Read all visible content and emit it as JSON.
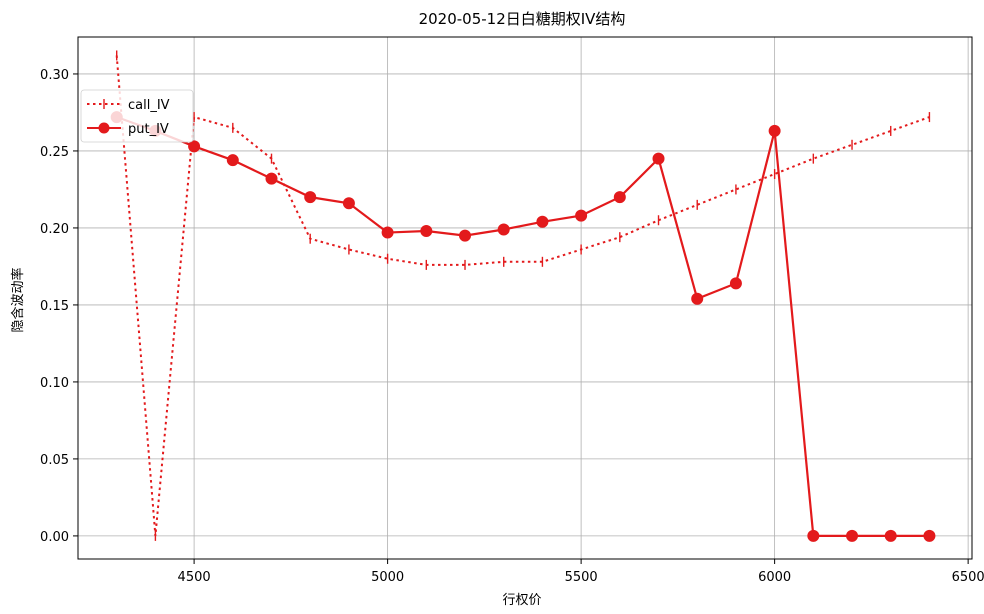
{
  "chart_data": {
    "type": "line",
    "title": "2020-05-12日白糖期权IV结构",
    "xlabel": "行权价",
    "ylabel": "隐含波动率",
    "xlim": [
      4200,
      6510
    ],
    "ylim": [
      -0.015,
      0.324
    ],
    "xticks": [
      4500,
      5000,
      5500,
      6000,
      6500
    ],
    "yticks": [
      0.0,
      0.05,
      0.1,
      0.15,
      0.2,
      0.25,
      0.3
    ],
    "xtick_labels": [
      "4500",
      "5000",
      "5500",
      "6000",
      "6500"
    ],
    "ytick_labels": [
      "0.00",
      "0.05",
      "0.10",
      "0.15",
      "0.20",
      "0.25",
      "0.30"
    ],
    "grid": true,
    "legend_position": "upper-left",
    "series": [
      {
        "name": "call_IV",
        "style": "dotted",
        "marker": "vline",
        "color": "#e31a1c",
        "x": [
          4300,
          4400,
          4500,
          4600,
          4700,
          4800,
          4900,
          5000,
          5100,
          5200,
          5300,
          5400,
          5500,
          5600,
          5700,
          5800,
          5900,
          6000,
          6100,
          6200,
          6300,
          6400
        ],
        "y": [
          0.312,
          0.0,
          0.272,
          0.265,
          0.245,
          0.193,
          0.186,
          0.18,
          0.176,
          0.176,
          0.178,
          0.178,
          0.186,
          0.194,
          0.205,
          0.215,
          0.225,
          0.235,
          0.245,
          0.254,
          0.263,
          0.272
        ]
      },
      {
        "name": "put_IV",
        "style": "solid",
        "marker": "circle",
        "color": "#e31a1c",
        "x": [
          4300,
          4400,
          4500,
          4600,
          4700,
          4800,
          4900,
          5000,
          5100,
          5200,
          5300,
          5400,
          5500,
          5600,
          5700,
          5800,
          5900,
          6000,
          6100,
          6200,
          6300,
          6400
        ],
        "y": [
          0.272,
          0.263,
          0.253,
          0.244,
          0.232,
          0.22,
          0.216,
          0.197,
          0.198,
          0.195,
          0.199,
          0.204,
          0.208,
          0.22,
          0.245,
          0.154,
          0.164,
          0.263,
          0.0,
          0.0,
          0.0,
          0.0
        ]
      }
    ]
  }
}
